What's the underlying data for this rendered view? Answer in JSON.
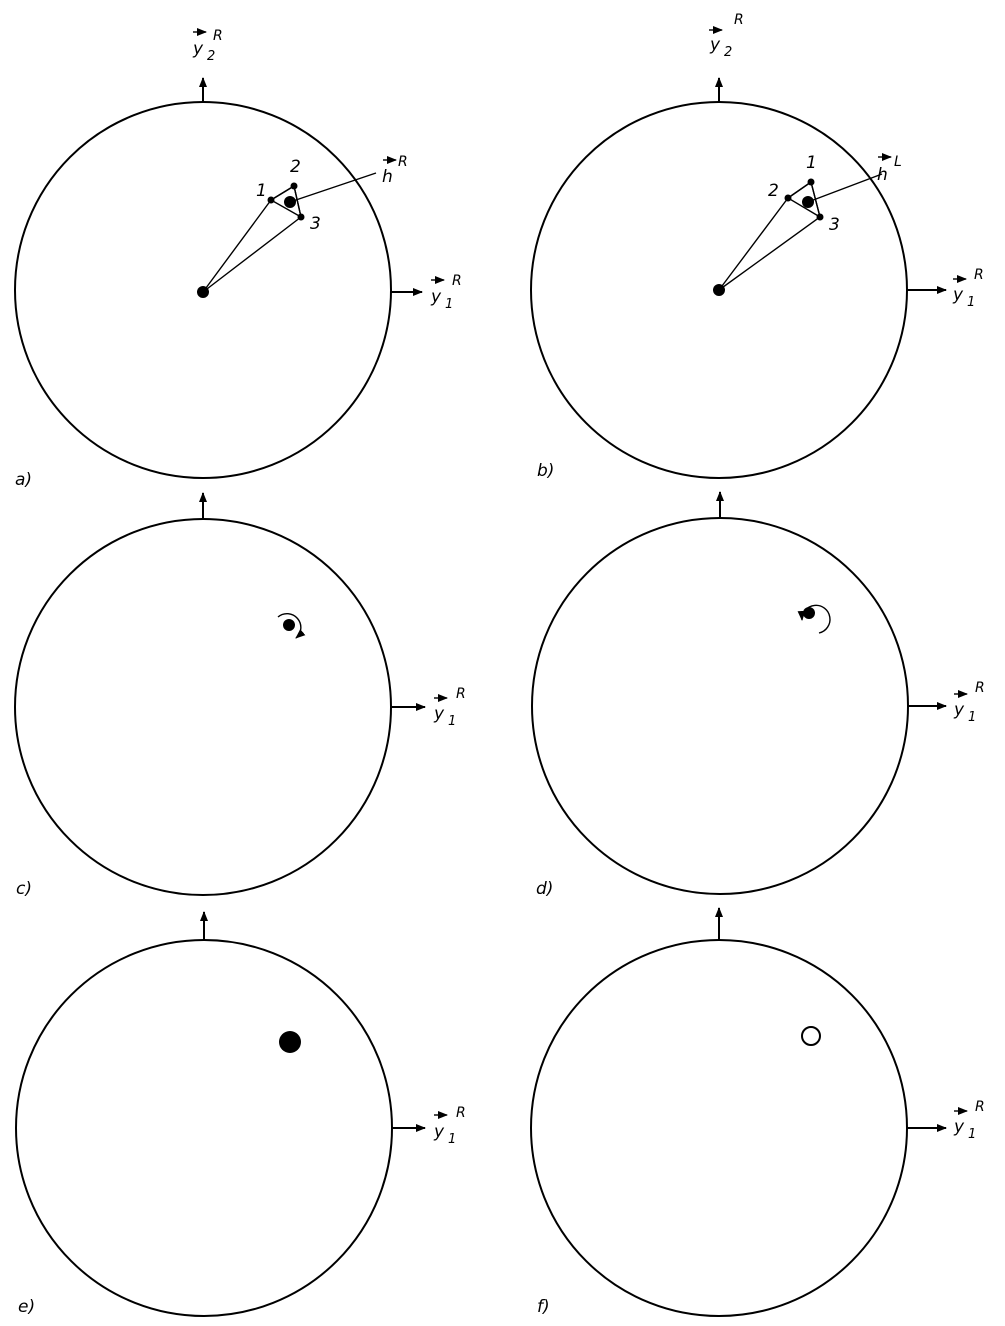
{
  "panels": {
    "a": {
      "label": "a)",
      "y2": {
        "base": "y",
        "sub": "2",
        "sup": "R"
      },
      "y1": {
        "base": "y",
        "sub": "1",
        "sup": "R"
      },
      "h": {
        "base": "h",
        "sup": "R"
      },
      "vertices": [
        "1",
        "2",
        "3"
      ]
    },
    "b": {
      "label": "b)",
      "y2": {
        "base": "y",
        "sub": "2",
        "sup": "R"
      },
      "y1": {
        "base": "y",
        "sub": "1",
        "sup": "R"
      },
      "h": {
        "base": "h",
        "sup": "L"
      },
      "vertices": [
        "1",
        "2",
        "3"
      ]
    },
    "c": {
      "label": "c)",
      "y1": {
        "base": "y",
        "sub": "1",
        "sup": "R"
      }
    },
    "d": {
      "label": "d)",
      "y1": {
        "base": "y",
        "sub": "1",
        "sup": "R"
      }
    },
    "e": {
      "label": "e)",
      "y1": {
        "base": "y",
        "sub": "1",
        "sup": "R"
      }
    },
    "f": {
      "label": "f)",
      "y1": {
        "base": "y",
        "sub": "1",
        "sup": "R"
      }
    }
  }
}
